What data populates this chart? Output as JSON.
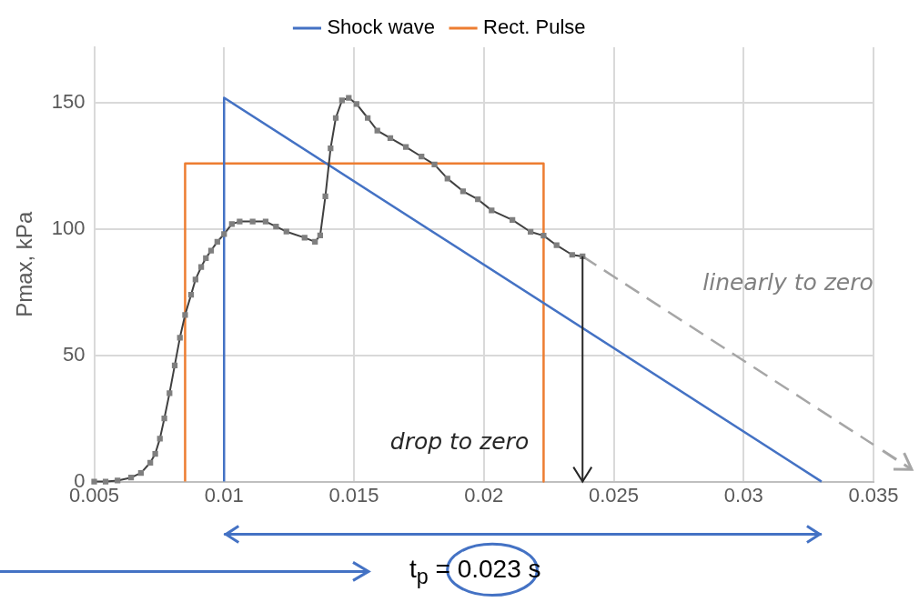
{
  "chart_data": {
    "type": "line",
    "ylabel": "Pmax, kPa",
    "xlim": [
      0.005,
      0.035
    ],
    "xticks": [
      0.005,
      0.01,
      0.015,
      0.02,
      0.025,
      0.03,
      0.035
    ],
    "ylim": [
      0,
      172
    ],
    "yticks": [
      0,
      50,
      100,
      150
    ],
    "grid": true,
    "legend": "top",
    "series": [
      {
        "color": "#7f7f7f",
        "marker": "square",
        "x": [
          0.005,
          0.00544,
          0.0059,
          0.00642,
          0.0068,
          0.00716,
          0.00735,
          0.00753,
          0.0077,
          0.0079,
          0.0081,
          0.0083,
          0.0085,
          0.00873,
          0.0089,
          0.00912,
          0.0093,
          0.0095,
          0.00974,
          0.01,
          0.0103,
          0.0106,
          0.0111,
          0.0116,
          0.012,
          0.0124,
          0.0131,
          0.0135,
          0.0137,
          0.0139,
          0.0141,
          0.0143,
          0.01454,
          0.0148,
          0.0151,
          0.01553,
          0.0159,
          0.0164,
          0.017,
          0.0176,
          0.0181,
          0.0186,
          0.0192,
          0.01977,
          0.0203,
          0.0211,
          0.0218,
          0.0223,
          0.0228,
          0.0234,
          0.0238
        ],
        "values": [
          0,
          0,
          0.4,
          1.6,
          3.4,
          7.5,
          11,
          17,
          25,
          35,
          46,
          57,
          66,
          74,
          80,
          85,
          88.5,
          91.5,
          95,
          98,
          102,
          103,
          103,
          103,
          101,
          99,
          96.6,
          95,
          97.5,
          113,
          132,
          144,
          151,
          152,
          149.5,
          144,
          139,
          136,
          132.5,
          128.7,
          125.6,
          120,
          115,
          111.8,
          107.4,
          103.6,
          98.9,
          97.4,
          93.6,
          89.8,
          89.2
        ]
      },
      {
        "name": "Shock wave",
        "color": "#4472c4",
        "marker": "none",
        "x": [
          0.01,
          0.01,
          0.033
        ],
        "values": [
          0,
          152,
          0
        ]
      },
      {
        "name": "Rect. Pulse",
        "color": "#ed7d31",
        "marker": "none",
        "x": [
          0.0085,
          0.0085,
          0.0223,
          0.0223
        ],
        "values": [
          0,
          126,
          126,
          0
        ]
      },
      {
        "color": "#a6a6a6",
        "marker": "none",
        "line_style": "dashed",
        "x": [
          0.0238,
          0.035
        ],
        "values": [
          89.2,
          14.6
        ]
      }
    ],
    "annotations": [
      "linearly to zero",
      "drop to zero",
      "t$_{p}$ = 0.023 s"
    ]
  }
}
